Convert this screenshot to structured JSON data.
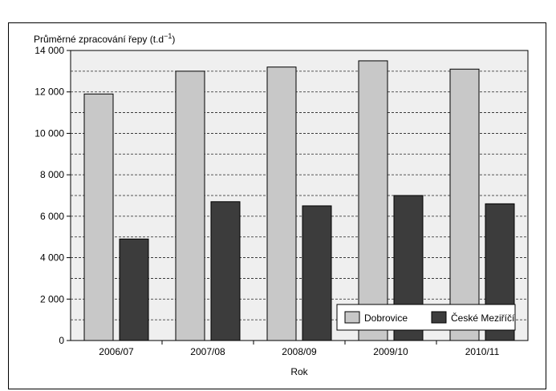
{
  "chart_data": {
    "type": "bar",
    "ylabel": "Průměrné zpracování řepy (t.d",
    "ylabel_superscript": "−1",
    "ylabel_suffix": ")",
    "xlabel": "Rok",
    "categories": [
      "2006/07",
      "2007/08",
      "2008/09",
      "2009/10",
      "2010/11"
    ],
    "series": [
      {
        "name": "Dobrovice",
        "values": [
          11900,
          13000,
          13200,
          13500,
          13100
        ],
        "color": "#c8c8c8"
      },
      {
        "name": "České Meziříčí",
        "values": [
          4900,
          6700,
          6500,
          7000,
          6600
        ],
        "color": "#3c3c3c"
      }
    ],
    "ylim": [
      0,
      14000
    ],
    "yticks": [
      0,
      2000,
      4000,
      6000,
      8000,
      10000,
      12000,
      14000
    ],
    "ytick_labels": [
      "0",
      "2 000",
      "4 000",
      "6 000",
      "8 000",
      "10 000",
      "12 000",
      "14 000"
    ],
    "grid": "dashed horizontal",
    "legend_position": "bottom-right",
    "plot_background": "#efefef"
  }
}
